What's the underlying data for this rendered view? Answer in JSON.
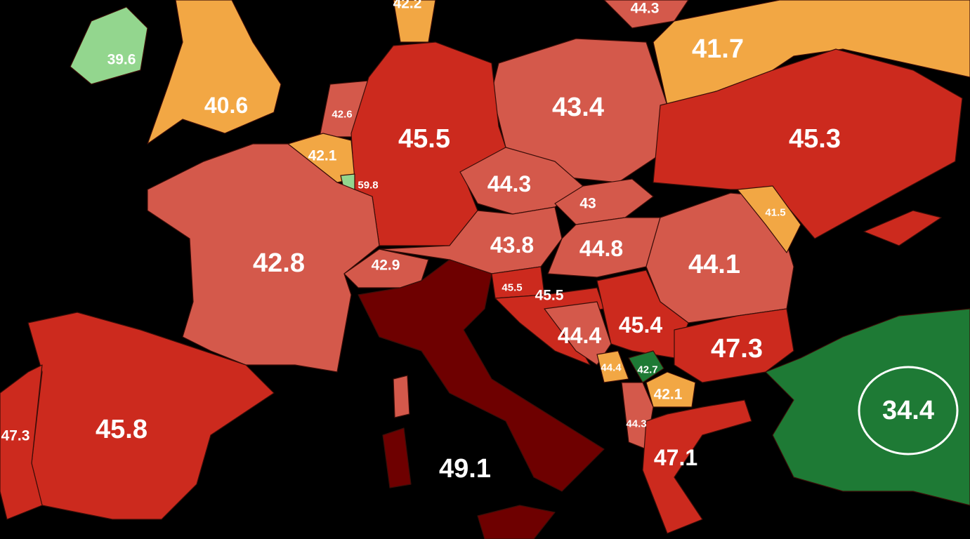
{
  "regions": [
    {
      "value": 42.2,
      "color": "#f2a744"
    },
    {
      "value": 44.3,
      "color": "#d4594b"
    },
    {
      "value": 39.6,
      "color": "#93d68e"
    },
    {
      "value": 41.7,
      "color": "#f2a744"
    },
    {
      "value": 40.6,
      "color": "#f2a744"
    },
    {
      "value": 43.4,
      "color": "#d4594b"
    },
    {
      "value": 42.6,
      "color": "#d4594b"
    },
    {
      "value": 45.5,
      "color": "#cc2a1e"
    },
    {
      "value": 45.3,
      "color": "#cc2a1e"
    },
    {
      "value": 42.1,
      "color": "#f2a744"
    },
    {
      "value": 44.3,
      "color": "#d4594b"
    },
    {
      "value": 59.8,
      "color": "#93d68e"
    },
    {
      "value": 43,
      "color": "#d4594b"
    },
    {
      "value": 41.5,
      "color": "#f2a744"
    },
    {
      "value": 43.8,
      "color": "#d4594b"
    },
    {
      "value": 44.8,
      "color": "#d4594b"
    },
    {
      "value": 42.8,
      "color": "#d4594b"
    },
    {
      "value": 44.1,
      "color": "#d4594b"
    },
    {
      "value": 42.9,
      "color": "#d4594b"
    },
    {
      "value": 45.5,
      "color": "#cc2a1e"
    },
    {
      "value": 45.5,
      "color": "#cc2a1e"
    },
    {
      "value": 45.4,
      "color": "#cc2a1e"
    },
    {
      "value": 44.4,
      "color": "#d4594b"
    },
    {
      "value": 47.3,
      "color": "#cc2a1e"
    },
    {
      "value": 44.4,
      "color": "#f2a744"
    },
    {
      "value": 42.7,
      "color": "#1e7a35"
    },
    {
      "value": 42.1,
      "color": "#f2a744"
    },
    {
      "value": 34.4,
      "color": "#1e7a35"
    },
    {
      "value": 45.8,
      "color": "#cc2a1e"
    },
    {
      "value": 47.3,
      "color": "#cc2a1e"
    },
    {
      "value": 44.3,
      "color": "#d4594b"
    },
    {
      "value": 47.1,
      "color": "#cc2a1e"
    },
    {
      "value": 49.1,
      "color": "#6e0000"
    }
  ]
}
